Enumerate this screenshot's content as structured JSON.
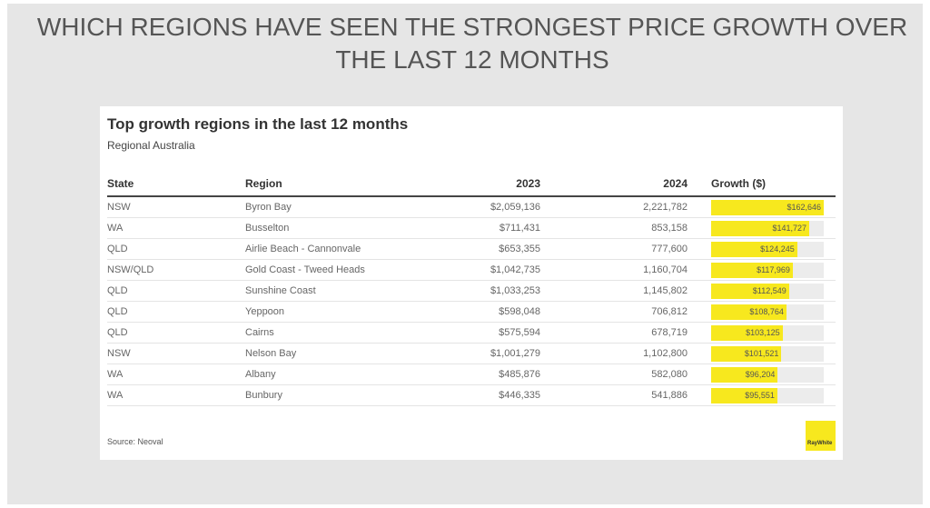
{
  "header": {
    "title": "WHICH REGIONS HAVE SEEN THE STRONGEST PRICE GROWTH OVER THE LAST 12 MONTHS"
  },
  "table": {
    "title": "Top growth regions in the last 12 months",
    "subtitle": "Regional Australia",
    "columns": [
      "State",
      "Region",
      "2023",
      "2024",
      "Growth ($)"
    ],
    "rows": [
      [
        "NSW",
        "Byron Bay",
        "$2,059,136",
        "2,221,782"
      ],
      [
        "WA",
        "Busselton",
        "$711,431",
        "853,158"
      ],
      [
        "QLD",
        "Airlie Beach - Cannonvale",
        "$653,355",
        "777,600"
      ],
      [
        "NSW/QLD",
        "Gold Coast - Tweed Heads",
        "$1,042,735",
        "1,160,704"
      ],
      [
        "QLD",
        "Sunshine Coast",
        "$1,033,253",
        "1,145,802"
      ],
      [
        "QLD",
        "Yeppoon",
        "$598,048",
        "706,812"
      ],
      [
        "QLD",
        "Cairns",
        "$575,594",
        "678,719"
      ],
      [
        "NSW",
        "Nelson Bay",
        "$1,001,279",
        "1,102,800"
      ],
      [
        "WA",
        "Albany",
        "$485,876",
        "582,080"
      ],
      [
        "WA",
        "Bunbury",
        "$446,335",
        "541,886"
      ]
    ],
    "growth": {
      "values": [
        162646,
        141727,
        124245,
        117969,
        112549,
        108764,
        103125,
        101521,
        96204,
        95551
      ],
      "value_labels": [
        "$162,646",
        "$141,727",
        "$124,245",
        "$117,969",
        "$112,549",
        "$108,764",
        "$103,125",
        "$101,521",
        "$96,204",
        "$95,551"
      ],
      "color": "#f7e81e"
    },
    "source": "Source: Neoval",
    "logo": "RayWhite"
  }
}
